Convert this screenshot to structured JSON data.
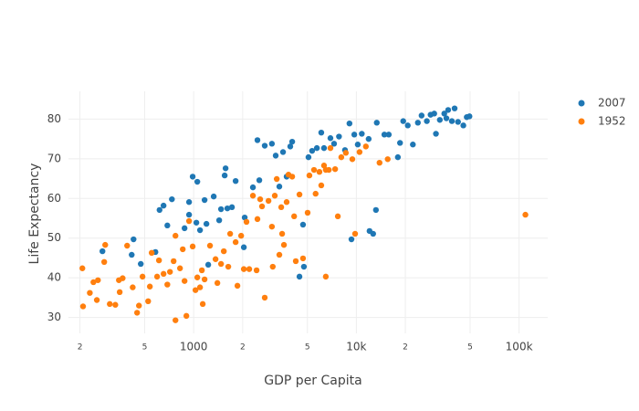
{
  "chart_data": {
    "type": "scatter",
    "x_label": "GDP per Capita",
    "y_label": "Life Expectancy",
    "xscale": "log",
    "grid": true,
    "legend": "right",
    "xlim": [
      170,
      150000
    ],
    "xticks": [
      {
        "value": 200,
        "label": "2"
      },
      {
        "value": 500,
        "label": "5"
      },
      1000,
      {
        "value": 2000,
        "label": "2"
      },
      {
        "value": 5000,
        "label": "5"
      },
      {
        "value": 10000,
        "label": "10k"
      },
      {
        "value": 20000,
        "label": "2"
      },
      {
        "value": 50000,
        "label": "5"
      },
      {
        "value": 100000,
        "label": "100k"
      }
    ],
    "ylim": [
      26,
      87
    ],
    "yticks": [
      30,
      40,
      50,
      60,
      70,
      80
    ],
    "series": [
      {
        "name": "2007",
        "color": "#1f77b4",
        "x": [
          275,
          416,
          427,
          473,
          582,
          617,
          653,
          689,
          735,
          879,
          937,
          937,
          986,
          1039,
          1053,
          1094,
          1167,
          1198,
          1229,
          1328,
          1435,
          1473,
          1551,
          1571,
          1611,
          1719,
          1811,
          2034,
          2059,
          2313,
          2466,
          2532,
          2734,
          3026,
          3193,
          3362,
          3542,
          3727,
          3925,
          4032,
          4470,
          4700,
          4760,
          5078,
          5345,
          5718,
          6086,
          6326,
          6928,
          7294,
          7821,
          8512,
          9070,
          9330,
          9710,
          10200,
          10800,
          11900,
          12050,
          12680,
          13190,
          13350,
          14860,
          15820,
          17990,
          18550,
          19410,
          20700,
          22250,
          23880,
          25170,
          27110,
          28590,
          30110,
          30840,
          32580,
          34700,
          35760,
          36660,
          38640,
          40160,
          42150,
          45450,
          47700,
          49570
        ],
        "y": [
          46.7,
          45.8,
          49.7,
          43.5,
          46.5,
          57.1,
          58.2,
          53.2,
          59.8,
          52.5,
          55.9,
          59.1,
          65.5,
          53.9,
          64.2,
          52.0,
          59.6,
          53.6,
          43.3,
          60.5,
          54.5,
          57.3,
          65.8,
          67.6,
          57.5,
          57.8,
          64.4,
          47.7,
          55.2,
          62.8,
          74.7,
          64.6,
          73.3,
          73.8,
          70.8,
          63.0,
          71.7,
          65.5,
          73.1,
          74.3,
          40.3,
          53.4,
          42.8,
          70.4,
          72.0,
          72.7,
          76.6,
          72.7,
          75.2,
          73.8,
          75.6,
          72.2,
          78.9,
          49.7,
          76.1,
          73.6,
          76.3,
          75.0,
          51.8,
          51.1,
          57.1,
          79.1,
          76.1,
          76.1,
          70.4,
          74.0,
          79.5,
          78.4,
          73.6,
          79.1,
          80.9,
          79.5,
          81.1,
          81.4,
          76.3,
          79.8,
          81.4,
          80.2,
          82.3,
          79.5,
          82.7,
          79.3,
          78.4,
          80.5,
          80.7
        ]
      },
      {
        "name": "1952",
        "color": "#ff7f0e",
        "x": [
          207,
          209,
          230,
          242,
          254,
          258,
          282,
          286,
          305,
          330,
          347,
          351,
          366,
          390,
          422,
          449,
          461,
          485,
          525,
          538,
          552,
          596,
          612,
          653,
          689,
          715,
          753,
          773,
          773,
          824,
          857,
          879,
          902,
          937,
          986,
          1026,
          1053,
          1094,
          1123,
          1137,
          1167,
          1260,
          1363,
          1399,
          1473,
          1532,
          1632,
          1676,
          1811,
          1858,
          1958,
          2034,
          2112,
          2196,
          2313,
          2436,
          2466,
          2563,
          2631,
          2734,
          2884,
          3026,
          3063,
          3152,
          3240,
          3362,
          3453,
          3497,
          3588,
          3727,
          3826,
          4032,
          4145,
          4243,
          4470,
          4700,
          5017,
          5144,
          5491,
          5617,
          5929,
          6086,
          6326,
          6488,
          6773,
          6928,
          7404,
          7693,
          8081,
          8617,
          9446,
          9822,
          10460,
          11440,
          13880,
          15580,
          6488,
          109400
        ],
        "y": [
          42.4,
          32.8,
          36.2,
          38.9,
          34.4,
          39.4,
          44.0,
          48.3,
          33.4,
          33.2,
          39.4,
          36.4,
          39.9,
          48.1,
          37.6,
          31.2,
          33.0,
          40.3,
          34.1,
          37.8,
          46.3,
          40.3,
          44.4,
          41.0,
          38.3,
          41.5,
          44.2,
          50.6,
          29.3,
          42.4,
          47.2,
          39.2,
          30.4,
          54.3,
          47.9,
          36.9,
          40.1,
          37.6,
          41.9,
          33.4,
          39.6,
          48.1,
          44.7,
          38.7,
          43.5,
          46.7,
          42.8,
          51.1,
          49.0,
          38.0,
          50.6,
          42.2,
          54.1,
          42.2,
          60.7,
          41.9,
          54.8,
          59.8,
          58.0,
          35.0,
          59.4,
          52.9,
          42.8,
          60.7,
          64.9,
          45.8,
          57.8,
          51.1,
          48.3,
          59.1,
          66.0,
          65.5,
          55.5,
          44.2,
          61.0,
          44.9,
          56.4,
          65.8,
          67.2,
          61.2,
          66.7,
          63.3,
          68.3,
          67.2,
          67.2,
          72.7,
          67.4,
          55.5,
          70.4,
          71.5,
          69.9,
          51.1,
          71.7,
          73.1,
          69.0,
          69.9,
          40.3,
          55.9
        ]
      }
    ]
  }
}
